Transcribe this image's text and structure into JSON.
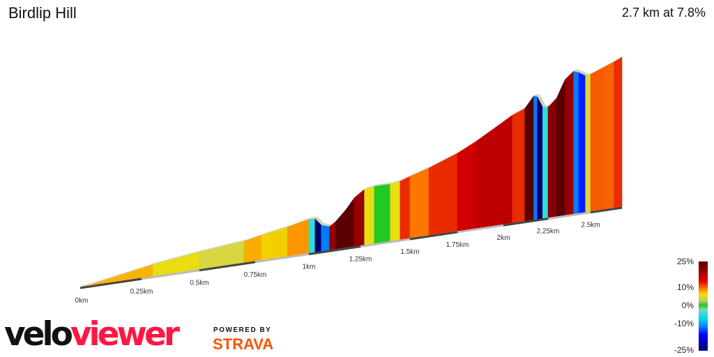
{
  "header": {
    "title": "Birdlip Hill",
    "summary": "2.7 km at 7.8%"
  },
  "legend": {
    "labels": [
      "25%",
      "10%",
      "0%",
      "-10%",
      "-25%"
    ]
  },
  "branding": {
    "velo": "velo",
    "viewer": "viewer",
    "powered_by": "POWERED BY",
    "strava": "STRAVA"
  },
  "colors": {
    "velo": "#111111",
    "viewer": "#ff1744",
    "strava": "#fc5200"
  },
  "chart_data": {
    "type": "area",
    "title": "Birdlip Hill",
    "xlabel": "",
    "ylabel": "",
    "x_unit": "km",
    "tick_labels": [
      "0km",
      "0.25km",
      "0.5km",
      "0.75km",
      "1km",
      "1.25km",
      "1.5km",
      "1.75km",
      "2km",
      "2.25km",
      "2.5km"
    ],
    "ticks": [
      0,
      0.25,
      0.5,
      0.75,
      1,
      1.25,
      1.5,
      1.75,
      2,
      2.25,
      2.5
    ],
    "xlim": [
      0,
      2.7
    ],
    "color_scale": {
      "min": -25,
      "max": 25,
      "unit": "%"
    },
    "profile": [
      [
        0,
        0
      ],
      [
        0.05,
        2
      ],
      [
        0.1,
        5
      ],
      [
        0.2,
        11
      ],
      [
        0.3,
        17
      ],
      [
        0.4,
        21
      ],
      [
        0.5,
        25
      ],
      [
        0.6,
        28
      ],
      [
        0.7,
        31
      ],
      [
        0.78,
        36
      ],
      [
        0.82,
        38
      ],
      [
        0.9,
        42
      ],
      [
        1.0,
        49
      ],
      [
        1.03,
        48
      ],
      [
        1.06,
        38
      ],
      [
        1.1,
        34
      ],
      [
        1.13,
        40
      ],
      [
        1.18,
        55
      ],
      [
        1.22,
        70
      ],
      [
        1.27,
        80
      ],
      [
        1.32,
        82
      ],
      [
        1.4,
        82
      ],
      [
        1.45,
        84
      ],
      [
        1.5,
        89
      ],
      [
        1.6,
        97
      ],
      [
        1.75,
        112
      ],
      [
        1.85,
        125
      ],
      [
        1.95,
        140
      ],
      [
        2.05,
        155
      ],
      [
        2.12,
        162
      ],
      [
        2.17,
        178
      ],
      [
        2.19,
        176
      ],
      [
        2.22,
        160
      ],
      [
        2.25,
        159
      ],
      [
        2.3,
        170
      ],
      [
        2.35,
        195
      ],
      [
        2.4,
        205
      ],
      [
        2.43,
        202
      ],
      [
        2.47,
        196
      ],
      [
        2.5,
        197
      ],
      [
        2.58,
        204
      ],
      [
        2.65,
        210
      ],
      [
        2.7,
        215
      ]
    ]
  }
}
